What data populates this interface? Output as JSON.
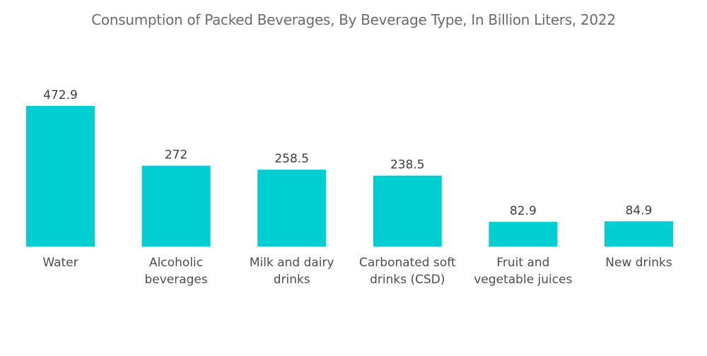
{
  "chart_data": {
    "type": "bar",
    "title": "Consumption of Packed Beverages, By Beverage Type, In Billion Liters, 2022",
    "xlabel": "",
    "ylabel": "",
    "categories": [
      [
        "Water"
      ],
      [
        "Alcoholic",
        "beverages"
      ],
      [
        "Milk and dairy",
        "drinks"
      ],
      [
        "Carbonated soft",
        "drinks (CSD)"
      ],
      [
        "Fruit and",
        "vegetable juices"
      ],
      [
        "New drinks"
      ]
    ],
    "values": [
      472.9,
      272,
      258.5,
      238.5,
      82.9,
      84.9
    ],
    "value_labels": [
      "472.9",
      "272",
      "258.5",
      "238.5",
      "82.9",
      "84.9"
    ],
    "ylim": [
      0,
      472.9
    ],
    "grid": false,
    "legend": "none",
    "bar_color": "#00ced1"
  }
}
